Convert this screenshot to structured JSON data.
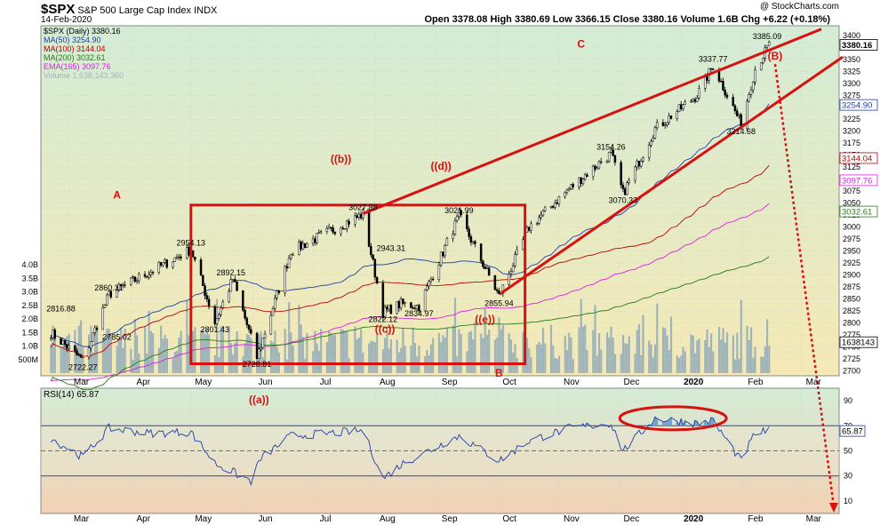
{
  "header": {
    "title": "$SPX",
    "subtitle": "S&P 500 Large Cap Index",
    "exchange": "INDX",
    "date": "14-Feb-2020",
    "watermark": "@ StockCharts.com",
    "ohlc": "Open 3378.08  High 3380.69  Low 3366.15  Close 3380.16  Volume 1.6B  Chg +6.22 (+0.18%)"
  },
  "legend": [
    {
      "label": "$SPX (Daily) 3380.16",
      "color": "#000000"
    },
    {
      "label": "MA(50) 3254.90",
      "color": "#1f3fa8"
    },
    {
      "label": "MA(100) 3144.04",
      "color": "#c00000"
    },
    {
      "label": "MA(200) 3032.61",
      "color": "#2a7a16"
    },
    {
      "label": "EMA(165) 3097.76",
      "color": "#e01ee0"
    },
    {
      "label": "Volume 1,638,143,360",
      "color": "#9fb4b8"
    }
  ],
  "rsi_legend": "RSI(14) 65.87",
  "colors": {
    "price_bg_top": "#d4ecd6",
    "price_bg_bottom": "#f5e9b6",
    "rsi_bg_top": "#d4ecd6",
    "rsi_bg_bottom": "#f3d2b4",
    "annotation": "#d81010",
    "volume": "#9fb4b8"
  },
  "chart_data": {
    "type": "line",
    "x": [
      "2019-02-20",
      "2019-03-08",
      "2019-03-21",
      "2019-04-23",
      "2019-05-01",
      "2019-05-13",
      "2019-05-22",
      "2019-06-03",
      "2019-06-20",
      "2019-07-26",
      "2019-08-05",
      "2019-08-14",
      "2019-08-23",
      "2019-09-12",
      "2019-10-02",
      "2019-10-17",
      "2019-11-06",
      "2019-11-27",
      "2019-12-03",
      "2019-12-19",
      "2020-01-09",
      "2020-01-17",
      "2020-01-31",
      "2020-02-07",
      "2020-02-14"
    ],
    "series": [
      {
        "name": "$SPX (Daily)",
        "values": [
          2780,
          2722,
          2860,
          2935,
          2954,
          2801,
          2892,
          2728,
          2950,
          3027,
          2822,
          2840,
          2835,
          3024,
          2856,
          3000,
          3080,
          3154,
          3070,
          3205,
          3275,
          3337,
          3215,
          3330,
          3380
        ]
      }
    ],
    "volume_shown": true,
    "ylim": [
      2690,
      3420
    ],
    "y_ticks": [
      "3400",
      "3375",
      "3350",
      "3325",
      "3300",
      "3275",
      "3250",
      "3225",
      "3200",
      "3175",
      "3150",
      "3125",
      "3100",
      "3075",
      "3050",
      "3025",
      "3000",
      "2975",
      "2950",
      "2925",
      "2900",
      "2875",
      "2850",
      "2825",
      "2800",
      "2775",
      "2750",
      "2725",
      "2700"
    ],
    "x_ticks": [
      "Mar",
      "Apr",
      "May",
      "Jun",
      "Jul",
      "Aug",
      "Sep",
      "Oct",
      "Nov",
      "Dec",
      "2020",
      "Feb",
      "Mar"
    ],
    "volume_ticks": [
      "4.0B",
      "3.5B",
      "3.0B",
      "2.5B",
      "2.0B",
      "1.5B",
      "1.0B",
      "500M"
    ],
    "price_labels": [
      {
        "t": "2019-02-25",
        "v": 2816.88,
        "label": "2816.88"
      },
      {
        "t": "2019-03-08",
        "v": 2722.27,
        "label": "2722.27"
      },
      {
        "t": "2019-03-21",
        "v": 2860.31,
        "label": "2860.31"
      },
      {
        "t": "2019-03-25",
        "v": 2785.02,
        "label": "2785.02"
      },
      {
        "t": "2019-05-01",
        "v": 2954.13,
        "label": "2954.13"
      },
      {
        "t": "2019-05-13",
        "v": 2801.43,
        "label": "2801.43"
      },
      {
        "t": "2019-05-21",
        "v": 2892.15,
        "label": "2892.15"
      },
      {
        "t": "2019-06-03",
        "v": 2728.81,
        "label": "2728.81"
      },
      {
        "t": "2019-07-26",
        "v": 3027.98,
        "label": "3027.98"
      },
      {
        "t": "2019-08-05",
        "v": 2822.12,
        "label": "2822.12"
      },
      {
        "t": "2019-08-09",
        "v": 2943.31,
        "label": "2943.31"
      },
      {
        "t": "2019-08-23",
        "v": 2834.97,
        "label": "2834.97"
      },
      {
        "t": "2019-09-12",
        "v": 3021.99,
        "label": "3021.99"
      },
      {
        "t": "2019-10-02",
        "v": 2855.94,
        "label": "2855.94"
      },
      {
        "t": "2019-11-27",
        "v": 3154.26,
        "label": "3154.26"
      },
      {
        "t": "2019-12-03",
        "v": 3070.33,
        "label": "3070.33"
      },
      {
        "t": "2020-01-17",
        "v": 3337.77,
        "label": "3337.77"
      },
      {
        "t": "2020-01-31",
        "v": 3214.68,
        "label": "3214.68"
      },
      {
        "t": "2020-02-13",
        "v": 3385.09,
        "label": "3385.09"
      }
    ],
    "right_axis_labels": [
      {
        "v": 3380.16,
        "label": "3380.16"
      },
      {
        "v": 3254.9,
        "label": "3254.90"
      },
      {
        "v": 3144.04,
        "label": "3144.04"
      },
      {
        "v": 3097.76,
        "label": "3097.76"
      },
      {
        "v": 3032.61,
        "label": "3032.61"
      },
      {
        "v": 2760,
        "label": "1638143"
      }
    ],
    "wave_labels": [
      {
        "t": "2019-03-25",
        "v": 3060,
        "label": "A"
      },
      {
        "t": "2019-10-02",
        "v": 2688,
        "label": "B"
      },
      {
        "t": "2019-11-12",
        "v": 3375,
        "label": "C"
      },
      {
        "t": "2019-07-15",
        "v": 3135,
        "label": "((b))"
      },
      {
        "t": "2019-09-03",
        "v": 3120,
        "label": "((d))"
      },
      {
        "t": "2019-08-06",
        "v": 2780,
        "label": "((c))"
      },
      {
        "t": "2019-09-25",
        "v": 2800,
        "label": "((e))"
      },
      {
        "t": "2020-02-17",
        "v": 3350,
        "label": "(B)"
      }
    ],
    "rsi": {
      "name": "RSI(14)",
      "x": [
        "2019-02-20",
        "2019-03-08",
        "2019-03-21",
        "2019-04-10",
        "2019-05-01",
        "2019-05-13",
        "2019-05-31",
        "2019-06-05",
        "2019-06-20",
        "2019-07-26",
        "2019-08-05",
        "2019-08-15",
        "2019-09-12",
        "2019-10-02",
        "2019-10-17",
        "2019-11-06",
        "2019-11-27",
        "2019-12-03",
        "2019-12-19",
        "2020-01-09",
        "2020-01-17",
        "2020-01-31",
        "2020-02-07",
        "2020-02-14"
      ],
      "values": [
        60,
        45,
        68,
        64,
        65,
        40,
        26,
        44,
        62,
        66,
        28,
        40,
        62,
        42,
        58,
        68,
        72,
        50,
        76,
        72,
        74,
        42,
        64,
        65.87
      ],
      "ylim": [
        0,
        100
      ],
      "ticks": [
        "90",
        "70",
        "50",
        "30",
        "10"
      ],
      "current_label": "65.87",
      "annotation": "((a))"
    }
  }
}
